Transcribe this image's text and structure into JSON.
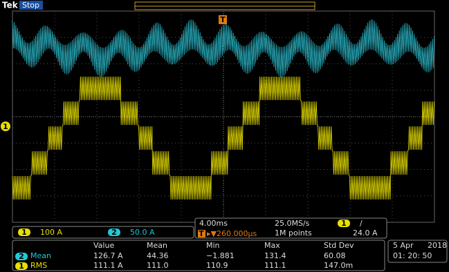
{
  "header": {
    "brand": "Tek",
    "status": "Stop",
    "trigger_marker": "T"
  },
  "ch1_marker": "1",
  "channels": [
    {
      "badge": "1",
      "scale": "100 A"
    },
    {
      "badge": "2",
      "scale": "50.0 A"
    }
  ],
  "timebase": {
    "scale": "4.00ms",
    "sample_rate": "25.0MS/s",
    "trigger_source": "1",
    "trigger_slope": "/",
    "trigger_level": "24.0 A",
    "position_badge": "T",
    "position": "▸▼260.000µs",
    "record_length": "1M points"
  },
  "measurements": {
    "headers": [
      "Value",
      "Mean",
      "Min",
      "Max",
      "Std Dev"
    ],
    "rows": [
      {
        "badge": "2",
        "name": "Mean",
        "cells": [
          "126.7 A",
          "44.36",
          "−1.881",
          "131.4",
          "60.08"
        ]
      },
      {
        "badge": "1",
        "name": "RMS",
        "cells": [
          "111.1 A",
          "111.0",
          "110.9",
          "111.1",
          "147.0m"
        ]
      }
    ]
  },
  "clock": {
    "date": "5 Apr",
    "year": "2018",
    "time": "01: 20: 50"
  }
}
